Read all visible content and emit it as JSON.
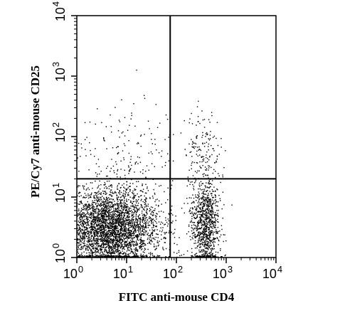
{
  "chart_data": {
    "type": "scatter",
    "title": "",
    "xlabel": "FITC anti-mouse CD4",
    "ylabel": "PE/Cy7 anti-mouse CD25",
    "x_scale": "log",
    "y_scale": "log",
    "xlim": [
      1,
      10000
    ],
    "ylim": [
      1,
      10000
    ],
    "x_ticks": [
      {
        "base": "10",
        "exp": "0",
        "value": 1
      },
      {
        "base": "10",
        "exp": "1",
        "value": 10
      },
      {
        "base": "10",
        "exp": "2",
        "value": 100
      },
      {
        "base": "10",
        "exp": "3",
        "value": 1000
      },
      {
        "base": "10",
        "exp": "4",
        "value": 10000
      }
    ],
    "y_ticks": [
      {
        "base": "10",
        "exp": "0",
        "value": 1
      },
      {
        "base": "10",
        "exp": "1",
        "value": 10
      },
      {
        "base": "10",
        "exp": "2",
        "value": 100
      },
      {
        "base": "10",
        "exp": "3",
        "value": 1000
      },
      {
        "base": "10",
        "exp": "4",
        "value": 10000
      }
    ],
    "quadrant_gate": {
      "x": 75,
      "y": 20
    },
    "grid": false,
    "point_color": "#000000",
    "populations": [
      {
        "description": "CD4-negative CD25-negative",
        "x_center": 4.5,
        "y_center": 3.0,
        "x_log_spread": 0.5,
        "y_log_spread": 0.35,
        "count": 3800
      },
      {
        "description": "CD4-positive CD25-negative",
        "x_center": 380,
        "y_center": 3.5,
        "x_log_spread": 0.14,
        "y_log_spread": 0.4,
        "count": 1000
      },
      {
        "description": "CD4-negative CD25-positive",
        "x_center": 10,
        "y_center": 70,
        "x_log_spread": 0.55,
        "y_log_spread": 0.35,
        "count": 150
      },
      {
        "description": "CD4-positive CD25-positive",
        "x_center": 330,
        "y_center": 70,
        "x_log_spread": 0.18,
        "y_log_spread": 0.3,
        "count": 140
      }
    ]
  }
}
